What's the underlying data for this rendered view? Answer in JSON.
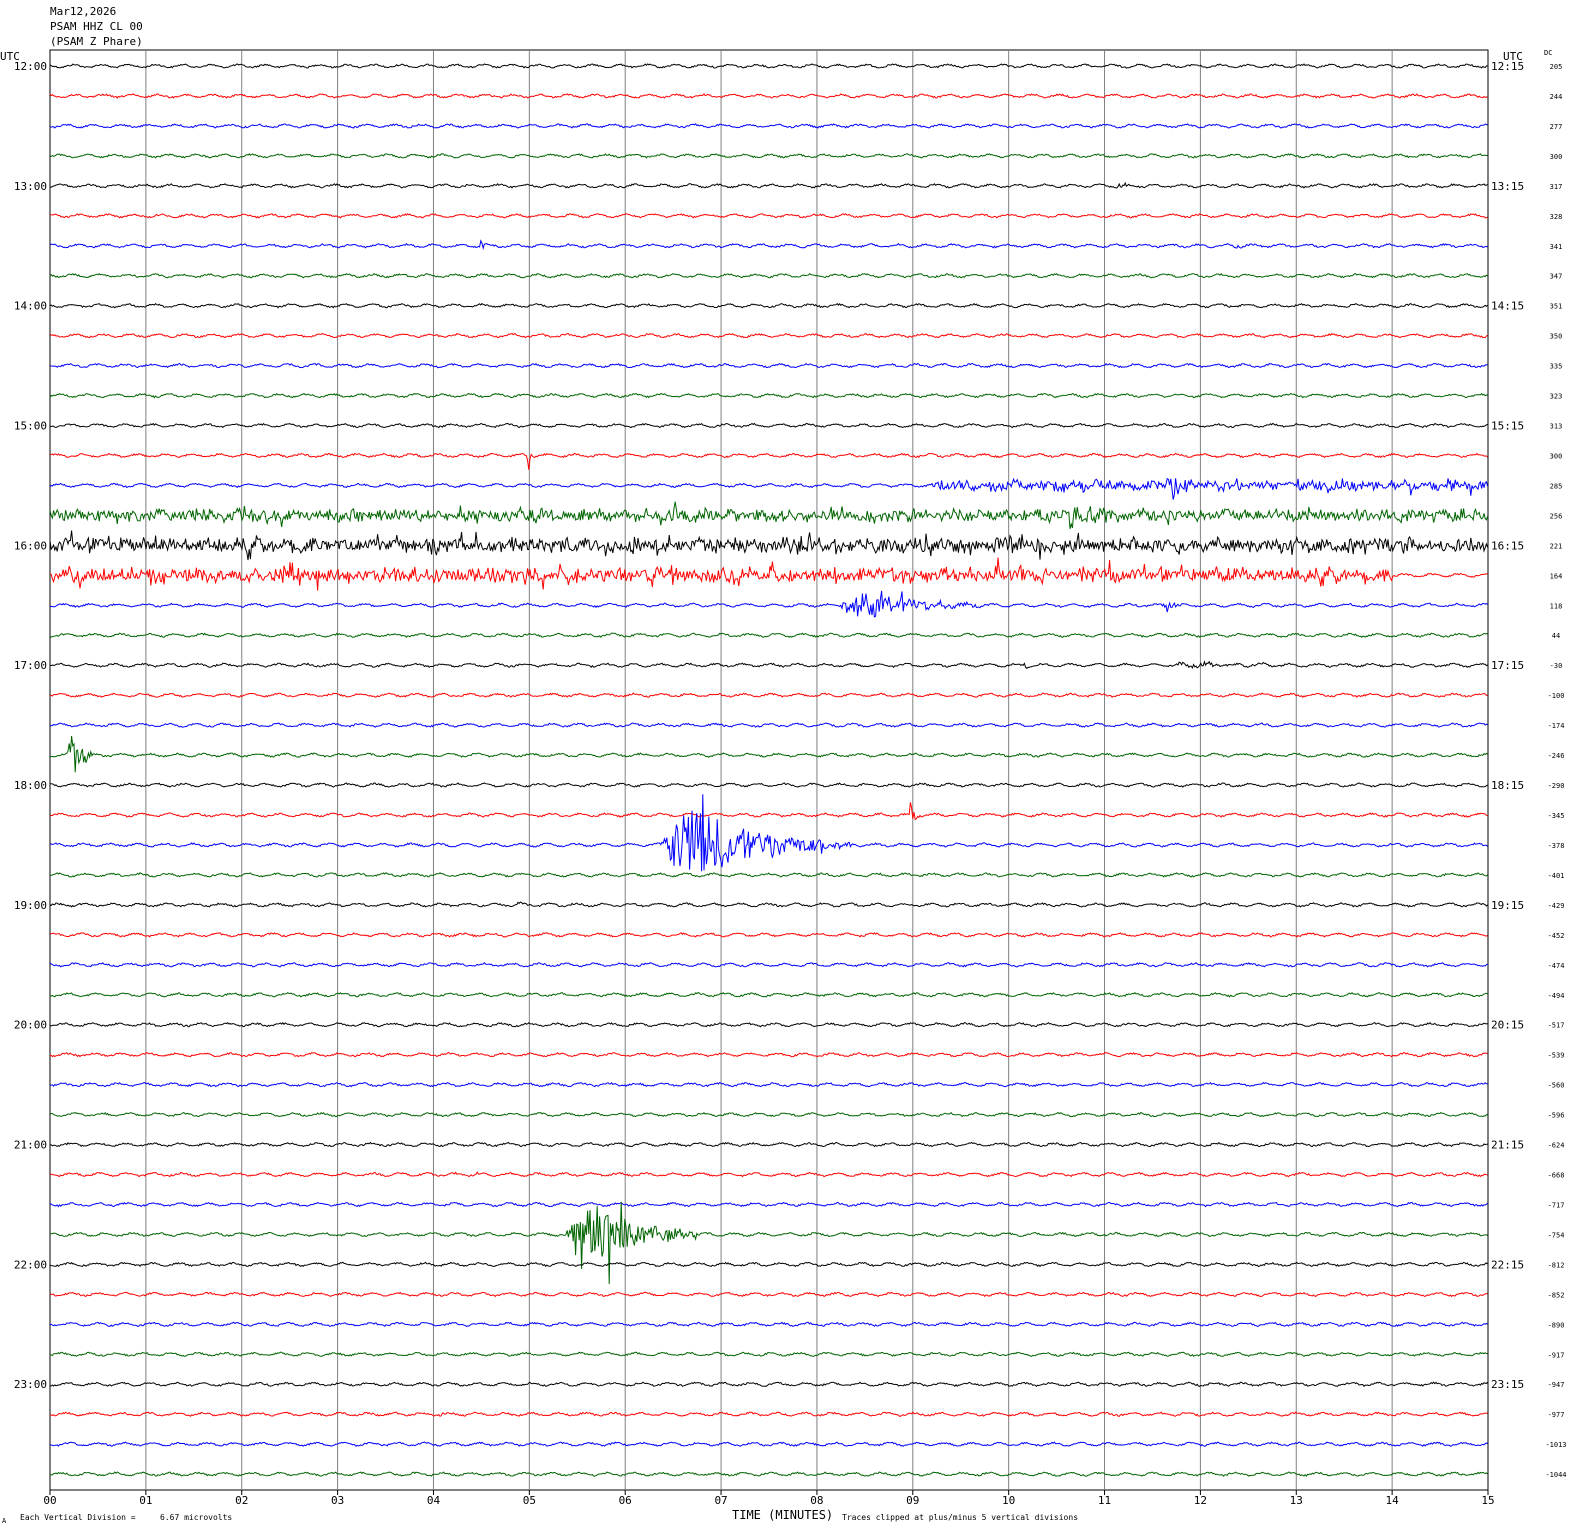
{
  "header": {
    "date": "Mar12,2026",
    "station": "PSAM HHZ CL 00",
    "description": "(PSAM Z Phare)"
  },
  "utc_left_label": "UTC",
  "utc_right_label": "UTC",
  "dc_label": "DC",
  "footer": {
    "division_label": "Each Vertical Division =",
    "division_value": "6.67 microvolts",
    "x_axis_title": "TIME (MINUTES)",
    "clip_note": "Traces clipped at plus/minus 5 vertical divisions",
    "corner_mark": "A"
  },
  "colors": {
    "trace_cycle": [
      "#000000",
      "#ff0000",
      "#0000ff",
      "#006400"
    ],
    "grid": "#808080"
  },
  "chart_data": {
    "type": "line",
    "subtype": "helicorder",
    "title": "",
    "xlabel": "TIME (MINUTES)",
    "ylabel": "",
    "xlim": [
      0,
      15
    ],
    "x_ticks": [
      "00",
      "01",
      "02",
      "03",
      "04",
      "05",
      "06",
      "07",
      "08",
      "09",
      "10",
      "11",
      "12",
      "13",
      "14",
      "15"
    ],
    "grid": true,
    "rows_per_hour": 4,
    "minutes_per_row": 15,
    "left_hour_labels": [
      "12:00",
      "13:00",
      "14:00",
      "15:00",
      "16:00",
      "17:00",
      "18:00",
      "19:00",
      "20:00",
      "21:00",
      "22:00",
      "23:00"
    ],
    "right_hour_labels": [
      "12:15",
      "13:15",
      "14:15",
      "15:15",
      "16:15",
      "17:15",
      "18:15",
      "19:15",
      "20:15",
      "21:15",
      "22:15",
      "23:15"
    ],
    "dc_offsets": [
      "205",
      "244",
      "277",
      "300",
      "317",
      "328",
      "341",
      "347",
      "351",
      "350",
      "335",
      "323",
      "313",
      "300",
      "285",
      "256",
      "221",
      "164",
      "118",
      "44",
      "-30",
      "-100",
      "-174",
      "-246",
      "-290",
      "-345",
      "-378",
      "-401",
      "-429",
      "-452",
      "-474",
      "-494",
      "-517",
      "-539",
      "-560",
      "-596",
      "-624",
      "-668",
      "-717",
      "-754",
      "-812",
      "-852",
      "-890",
      "-917",
      "-947",
      "-977",
      "-1013",
      "-1044"
    ],
    "events": [
      {
        "row": 4,
        "start_min": 11.1,
        "duration_min": 0.35,
        "amplitude_div": 0.6
      },
      {
        "row": 6,
        "start_min": 4.48,
        "duration_min": 0.08,
        "amplitude_div": 3.0
      },
      {
        "row": 6,
        "start_min": 12.35,
        "duration_min": 0.15,
        "amplitude_div": 0.6
      },
      {
        "row": 13,
        "start_min": 4.98,
        "duration_min": 0.04,
        "amplitude_div": 7.0
      },
      {
        "row": 14,
        "start_min": 9.2,
        "duration_min": 5.8,
        "amplitude_div": 2.0
      },
      {
        "row": 14,
        "start_min": 11.6,
        "duration_min": 0.4,
        "amplitude_div": 4.0
      },
      {
        "row": 15,
        "start_min": 0.0,
        "duration_min": 15.0,
        "amplitude_div": 2.5
      },
      {
        "row": 15,
        "start_min": 10.6,
        "duration_min": 0.2,
        "amplitude_div": 5.0
      },
      {
        "row": 16,
        "start_min": 0.0,
        "duration_min": 15.0,
        "amplitude_div": 3.0
      },
      {
        "row": 17,
        "start_min": 0.0,
        "duration_min": 14.0,
        "amplitude_div": 2.8
      },
      {
        "row": 18,
        "start_min": 8.2,
        "duration_min": 1.6,
        "amplitude_div": 4.0
      },
      {
        "row": 18,
        "start_min": 11.6,
        "duration_min": 0.25,
        "amplitude_div": 2.0
      },
      {
        "row": 20,
        "start_min": 11.7,
        "duration_min": 1.3,
        "amplitude_div": 0.8
      },
      {
        "row": 20,
        "start_min": 10.15,
        "duration_min": 0.1,
        "amplitude_div": 1.0
      },
      {
        "row": 23,
        "start_min": 0.18,
        "duration_min": 0.3,
        "amplitude_div": 6.0
      },
      {
        "row": 26,
        "start_min": 6.35,
        "duration_min": 2.0,
        "amplitude_div": 10.0
      },
      {
        "row": 25,
        "start_min": 8.95,
        "duration_min": 0.15,
        "amplitude_div": 4.0
      },
      {
        "row": 28,
        "start_min": 4.85,
        "duration_min": 0.2,
        "amplitude_div": 0.6
      },
      {
        "row": 37,
        "start_min": 4.45,
        "duration_min": 0.08,
        "amplitude_div": 1.0
      },
      {
        "row": 39,
        "start_min": 5.35,
        "duration_min": 1.4,
        "amplitude_div": 10.0
      },
      {
        "row": 45,
        "start_min": 4.05,
        "duration_min": 0.08,
        "amplitude_div": 0.8
      }
    ]
  }
}
